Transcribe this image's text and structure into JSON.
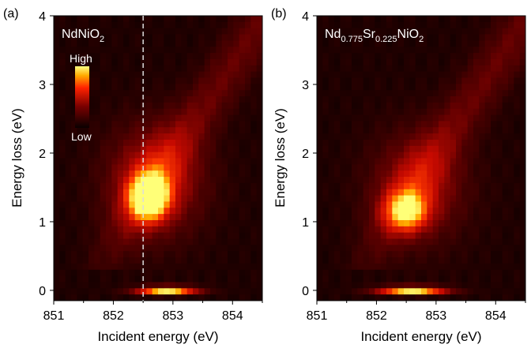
{
  "chart_data": [
    {
      "type": "heatmap",
      "panel_letter": "(a)",
      "sample": {
        "prefix": "NdNiO",
        "sub": "2"
      },
      "xlabel": "Incident energy (eV)",
      "ylabel": "Energy loss (eV)",
      "xlim": [
        851.0,
        854.5
      ],
      "ylim": [
        -0.15,
        4.0
      ],
      "xticks": [
        "851",
        "852",
        "853",
        "854"
      ],
      "yticks": [
        "0",
        "1",
        "2",
        "3",
        "4"
      ],
      "colorbar": {
        "high": "High",
        "low": "Low"
      },
      "cut_line_x": 852.5,
      "features": [
        {
          "x": 852.6,
          "y": 1.35,
          "intensity": 1.0,
          "sx": 0.22,
          "sy": 0.22
        },
        {
          "x": 852.7,
          "y": 1.6,
          "intensity": 0.45,
          "sx": 0.55,
          "sy": 0.55
        },
        {
          "x": 852.9,
          "y": 0.0,
          "intensity": 1.0,
          "sx": 0.35,
          "sy": 0.04
        }
      ]
    },
    {
      "type": "heatmap",
      "panel_letter": "(b)",
      "sample": {
        "parts": [
          [
            "Nd",
            ""
          ],
          [
            "0.775",
            "sub"
          ],
          [
            "Sr",
            ""
          ],
          [
            "0.225",
            "sub"
          ],
          [
            "NiO",
            ""
          ],
          [
            "2",
            "sub"
          ]
        ]
      },
      "xlabel": "Incident energy (eV)",
      "ylabel": "Energy loss (eV)",
      "xlim": [
        851.0,
        854.5
      ],
      "ylim": [
        -0.15,
        4.0
      ],
      "xticks": [
        "851",
        "852",
        "853",
        "854"
      ],
      "yticks": [
        "0",
        "1",
        "2",
        "3",
        "4"
      ],
      "features": [
        {
          "x": 852.5,
          "y": 1.15,
          "intensity": 0.7,
          "sx": 0.25,
          "sy": 0.2
        },
        {
          "x": 852.7,
          "y": 1.5,
          "intensity": 0.35,
          "sx": 0.55,
          "sy": 0.55
        },
        {
          "x": 852.6,
          "y": 0.0,
          "intensity": 1.0,
          "sx": 0.4,
          "sy": 0.04
        }
      ]
    }
  ],
  "colors": {
    "background": "#140000",
    "peak": "#ffff66",
    "mid": "#ff2a00",
    "cutline": "#dddddd"
  }
}
